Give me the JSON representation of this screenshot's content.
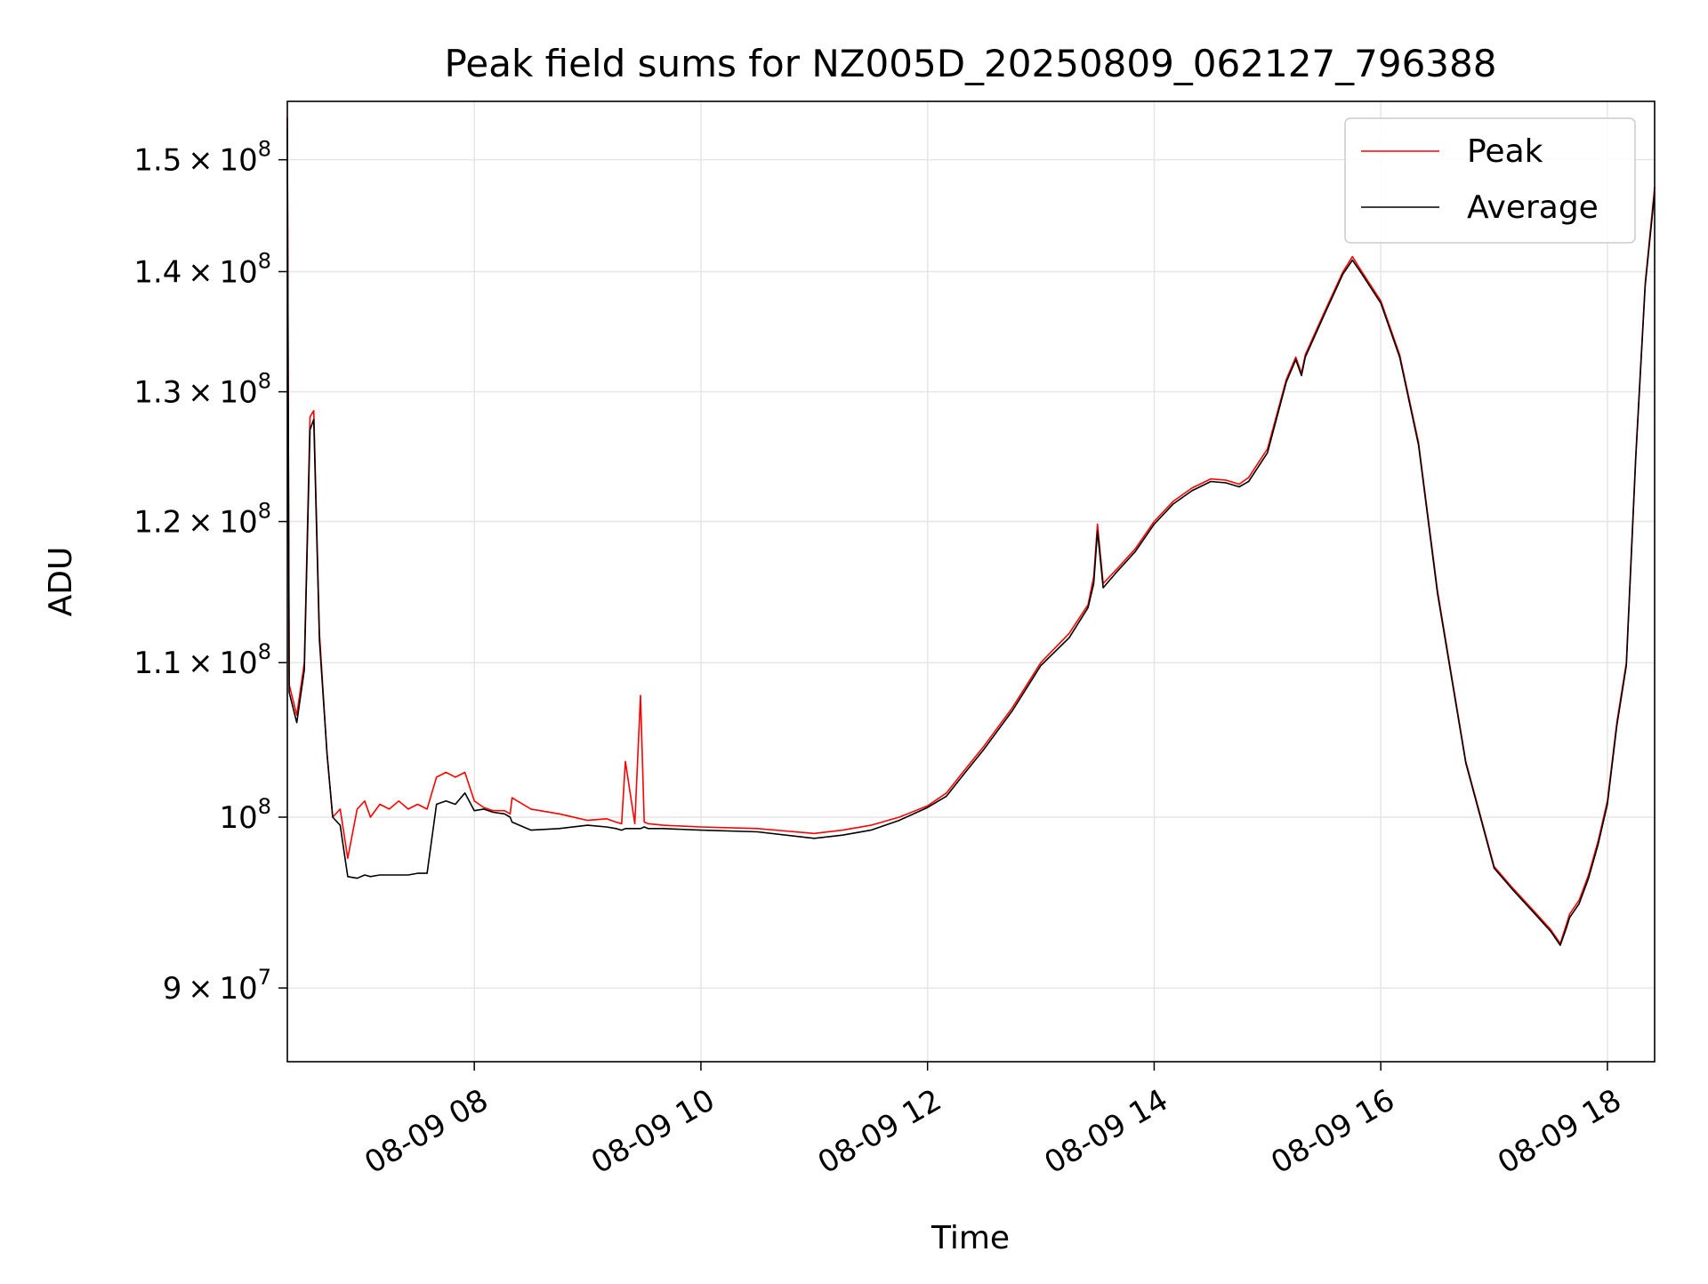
{
  "chart_data": {
    "type": "line",
    "title": "Peak field sums for NZ005D_20250809_062127_796388",
    "xlabel": "Time",
    "ylabel": "ADU",
    "y_scale": "log",
    "grid": true,
    "legend_position": "top-right",
    "x_ticks": [
      "08-09 08",
      "08-09 10",
      "08-09 12",
      "08-09 14",
      "08-09 16",
      "08-09 18"
    ],
    "y_ticks": [
      {
        "value": 90000000,
        "mantissa": "9",
        "exponent": "7"
      },
      {
        "value": 100000000,
        "mantissa": "",
        "exponent": "8"
      },
      {
        "value": 110000000,
        "mantissa": "1.1",
        "exponent": "8"
      },
      {
        "value": 120000000,
        "mantissa": "1.2",
        "exponent": "8"
      },
      {
        "value": 130000000,
        "mantissa": "1.3",
        "exponent": "8"
      },
      {
        "value": 140000000,
        "mantissa": "1.4",
        "exponent": "8"
      },
      {
        "value": 150000000,
        "mantissa": "1.5",
        "exponent": "8"
      }
    ],
    "xlim": [
      "2025-08-09 06:21",
      "2025-08-09 18:25"
    ],
    "ylim": [
      86000000,
      155500000
    ],
    "series": [
      {
        "name": "Peak",
        "color": "#ff0000",
        "x": [
          "2025-08-09 06:21",
          "2025-08-09 06:22",
          "2025-08-09 06:26",
          "2025-08-09 06:30",
          "2025-08-09 06:33",
          "2025-08-09 06:35",
          "2025-08-09 06:38",
          "2025-08-09 06:42",
          "2025-08-09 06:45",
          "2025-08-09 06:49",
          "2025-08-09 06:53",
          "2025-08-09 06:58",
          "2025-08-09 07:02",
          "2025-08-09 07:05",
          "2025-08-09 07:10",
          "2025-08-09 07:15",
          "2025-08-09 07:20",
          "2025-08-09 07:25",
          "2025-08-09 07:30",
          "2025-08-09 07:35",
          "2025-08-09 07:40",
          "2025-08-09 07:45",
          "2025-08-09 07:50",
          "2025-08-09 07:55",
          "2025-08-09 08:00",
          "2025-08-09 08:05",
          "2025-08-09 08:10",
          "2025-08-09 08:16",
          "2025-08-09 08:19",
          "2025-08-09 08:20",
          "2025-08-09 08:30",
          "2025-08-09 08:45",
          "2025-08-09 09:00",
          "2025-08-09 09:10",
          "2025-08-09 09:15",
          "2025-08-09 09:18",
          "2025-08-09 09:20",
          "2025-08-09 09:25",
          "2025-08-09 09:28",
          "2025-08-09 09:30",
          "2025-08-09 09:32",
          "2025-08-09 09:40",
          "2025-08-09 10:00",
          "2025-08-09 10:30",
          "2025-08-09 11:00",
          "2025-08-09 11:15",
          "2025-08-09 11:30",
          "2025-08-09 11:45",
          "2025-08-09 12:00",
          "2025-08-09 12:10",
          "2025-08-09 12:20",
          "2025-08-09 12:30",
          "2025-08-09 12:45",
          "2025-08-09 13:00",
          "2025-08-09 13:15",
          "2025-08-09 13:25",
          "2025-08-09 13:28",
          "2025-08-09 13:30",
          "2025-08-09 13:33",
          "2025-08-09 13:40",
          "2025-08-09 13:50",
          "2025-08-09 14:00",
          "2025-08-09 14:10",
          "2025-08-09 14:20",
          "2025-08-09 14:30",
          "2025-08-09 14:38",
          "2025-08-09 14:45",
          "2025-08-09 14:50",
          "2025-08-09 15:00",
          "2025-08-09 15:10",
          "2025-08-09 15:15",
          "2025-08-09 15:18",
          "2025-08-09 15:20",
          "2025-08-09 15:30",
          "2025-08-09 15:40",
          "2025-08-09 15:45",
          "2025-08-09 15:50",
          "2025-08-09 16:00",
          "2025-08-09 16:10",
          "2025-08-09 16:20",
          "2025-08-09 16:30",
          "2025-08-09 16:45",
          "2025-08-09 17:00",
          "2025-08-09 17:10",
          "2025-08-09 17:20",
          "2025-08-09 17:30",
          "2025-08-09 17:35",
          "2025-08-09 17:38",
          "2025-08-09 17:40",
          "2025-08-09 17:45",
          "2025-08-09 17:50",
          "2025-08-09 17:55",
          "2025-08-09 18:00",
          "2025-08-09 18:05",
          "2025-08-09 18:10",
          "2025-08-09 18:15",
          "2025-08-09 18:20",
          "2025-08-09 18:25"
        ],
        "values": [
          154000000,
          108500000,
          106500000,
          110000000,
          128000000,
          128500000,
          112000000,
          104000000,
          100000000,
          100500000,
          97500000,
          100500000,
          101000000,
          100000000,
          100800000,
          100500000,
          101000000,
          100500000,
          100800000,
          100500000,
          102500000,
          102800000,
          102500000,
          102800000,
          101000000,
          100600000,
          100400000,
          100400000,
          100200000,
          101200000,
          100500000,
          100200000,
          99800000,
          99900000,
          99700000,
          99600000,
          103500000,
          99600000,
          107800000,
          99700000,
          99600000,
          99500000,
          99400000,
          99300000,
          99000000,
          99200000,
          99500000,
          100000000,
          100700000,
          101500000,
          103000000,
          104500000,
          107000000,
          110000000,
          112000000,
          114000000,
          116000000,
          119800000,
          115500000,
          116500000,
          118000000,
          120000000,
          121500000,
          122500000,
          123200000,
          123100000,
          122800000,
          123300000,
          125500000,
          131000000,
          132800000,
          131500000,
          133000000,
          136500000,
          140000000,
          141300000,
          140000000,
          137500000,
          133000000,
          126000000,
          115000000,
          103500000,
          97000000,
          95700000,
          94500000,
          93300000,
          92500000,
          93500000,
          94200000,
          95000000,
          96500000,
          98500000,
          101000000,
          106000000,
          110000000,
          125000000,
          139000000,
          147500000
        ]
      },
      {
        "name": "Average",
        "color": "#000000",
        "x": [
          "2025-08-09 06:21",
          "2025-08-09 06:22",
          "2025-08-09 06:26",
          "2025-08-09 06:30",
          "2025-08-09 06:33",
          "2025-08-09 06:35",
          "2025-08-09 06:38",
          "2025-08-09 06:42",
          "2025-08-09 06:45",
          "2025-08-09 06:49",
          "2025-08-09 06:53",
          "2025-08-09 06:58",
          "2025-08-09 07:02",
          "2025-08-09 07:05",
          "2025-08-09 07:10",
          "2025-08-09 07:15",
          "2025-08-09 07:20",
          "2025-08-09 07:25",
          "2025-08-09 07:30",
          "2025-08-09 07:35",
          "2025-08-09 07:40",
          "2025-08-09 07:45",
          "2025-08-09 07:50",
          "2025-08-09 07:55",
          "2025-08-09 08:00",
          "2025-08-09 08:05",
          "2025-08-09 08:10",
          "2025-08-09 08:16",
          "2025-08-09 08:19",
          "2025-08-09 08:20",
          "2025-08-09 08:30",
          "2025-08-09 08:45",
          "2025-08-09 09:00",
          "2025-08-09 09:10",
          "2025-08-09 09:15",
          "2025-08-09 09:18",
          "2025-08-09 09:20",
          "2025-08-09 09:25",
          "2025-08-09 09:28",
          "2025-08-09 09:30",
          "2025-08-09 09:32",
          "2025-08-09 09:40",
          "2025-08-09 10:00",
          "2025-08-09 10:30",
          "2025-08-09 11:00",
          "2025-08-09 11:15",
          "2025-08-09 11:30",
          "2025-08-09 11:45",
          "2025-08-09 12:00",
          "2025-08-09 12:10",
          "2025-08-09 12:20",
          "2025-08-09 12:30",
          "2025-08-09 12:45",
          "2025-08-09 13:00",
          "2025-08-09 13:15",
          "2025-08-09 13:25",
          "2025-08-09 13:28",
          "2025-08-09 13:30",
          "2025-08-09 13:33",
          "2025-08-09 13:40",
          "2025-08-09 13:50",
          "2025-08-09 14:00",
          "2025-08-09 14:10",
          "2025-08-09 14:20",
          "2025-08-09 14:30",
          "2025-08-09 14:38",
          "2025-08-09 14:45",
          "2025-08-09 14:50",
          "2025-08-09 15:00",
          "2025-08-09 15:10",
          "2025-08-09 15:15",
          "2025-08-09 15:18",
          "2025-08-09 15:20",
          "2025-08-09 15:30",
          "2025-08-09 15:40",
          "2025-08-09 15:45",
          "2025-08-09 15:50",
          "2025-08-09 16:00",
          "2025-08-09 16:10",
          "2025-08-09 16:20",
          "2025-08-09 16:30",
          "2025-08-09 16:45",
          "2025-08-09 17:00",
          "2025-08-09 17:10",
          "2025-08-09 17:20",
          "2025-08-09 17:30",
          "2025-08-09 17:35",
          "2025-08-09 17:38",
          "2025-08-09 17:40",
          "2025-08-09 17:45",
          "2025-08-09 17:50",
          "2025-08-09 17:55",
          "2025-08-09 18:00",
          "2025-08-09 18:05",
          "2025-08-09 18:10",
          "2025-08-09 18:15",
          "2025-08-09 18:20",
          "2025-08-09 18:25"
        ],
        "values": [
          153000000,
          108000000,
          106000000,
          109500000,
          127000000,
          127800000,
          111500000,
          104000000,
          100000000,
          99500000,
          96400000,
          96300000,
          96500000,
          96400000,
          96500000,
          96500000,
          96500000,
          96500000,
          96600000,
          96600000,
          100800000,
          101000000,
          100800000,
          101500000,
          100400000,
          100500000,
          100300000,
          100200000,
          100000000,
          99700000,
          99200000,
          99300000,
          99500000,
          99400000,
          99300000,
          99200000,
          99300000,
          99300000,
          99300000,
          99400000,
          99300000,
          99300000,
          99200000,
          99100000,
          98700000,
          98900000,
          99200000,
          99800000,
          100600000,
          101300000,
          102800000,
          104300000,
          106800000,
          109800000,
          111700000,
          113800000,
          115500000,
          119300000,
          115200000,
          116300000,
          117800000,
          119800000,
          121300000,
          122300000,
          123000000,
          122900000,
          122600000,
          123000000,
          125200000,
          130800000,
          132600000,
          131300000,
          132800000,
          136300000,
          139800000,
          141000000,
          139800000,
          137300000,
          132800000,
          125800000,
          114800000,
          103400000,
          96900000,
          95600000,
          94400000,
          93200000,
          92400000,
          93300000,
          94000000,
          94800000,
          96300000,
          98300000,
          100800000,
          105800000,
          109800000,
          124800000,
          138800000,
          147000000
        ]
      }
    ]
  }
}
